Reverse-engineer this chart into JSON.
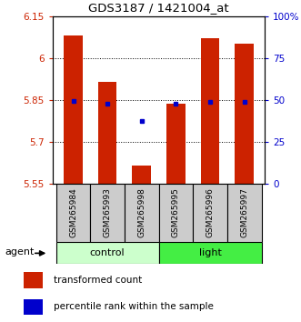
{
  "title": "GDS3187 / 1421004_at",
  "samples": [
    "GSM265984",
    "GSM265993",
    "GSM265998",
    "GSM265995",
    "GSM265996",
    "GSM265997"
  ],
  "transformed_counts": [
    6.08,
    5.915,
    5.615,
    5.835,
    6.07,
    6.05
  ],
  "percentile_ranks": [
    5.845,
    5.835,
    5.775,
    5.835,
    5.843,
    5.843
  ],
  "y_min": 5.55,
  "y_max": 6.15,
  "y_ticks": [
    5.55,
    5.7,
    5.85,
    6.0,
    6.15
  ],
  "y_tick_labels": [
    "5.55",
    "5.7",
    "5.85",
    "6",
    "6.15"
  ],
  "right_y_ticks": [
    5.55,
    5.7,
    5.85,
    6.0,
    6.15
  ],
  "right_y_labels": [
    "0",
    "25",
    "50",
    "75",
    "100%"
  ],
  "grid_lines": [
    5.7,
    5.85,
    6.0
  ],
  "bar_color": "#cc2200",
  "dot_color": "#0000cc",
  "bar_width": 0.55,
  "control_color": "#ccffcc",
  "light_color": "#44ee44",
  "sample_box_color": "#cccccc",
  "figsize": [
    3.31,
    3.54
  ],
  "dpi": 100
}
